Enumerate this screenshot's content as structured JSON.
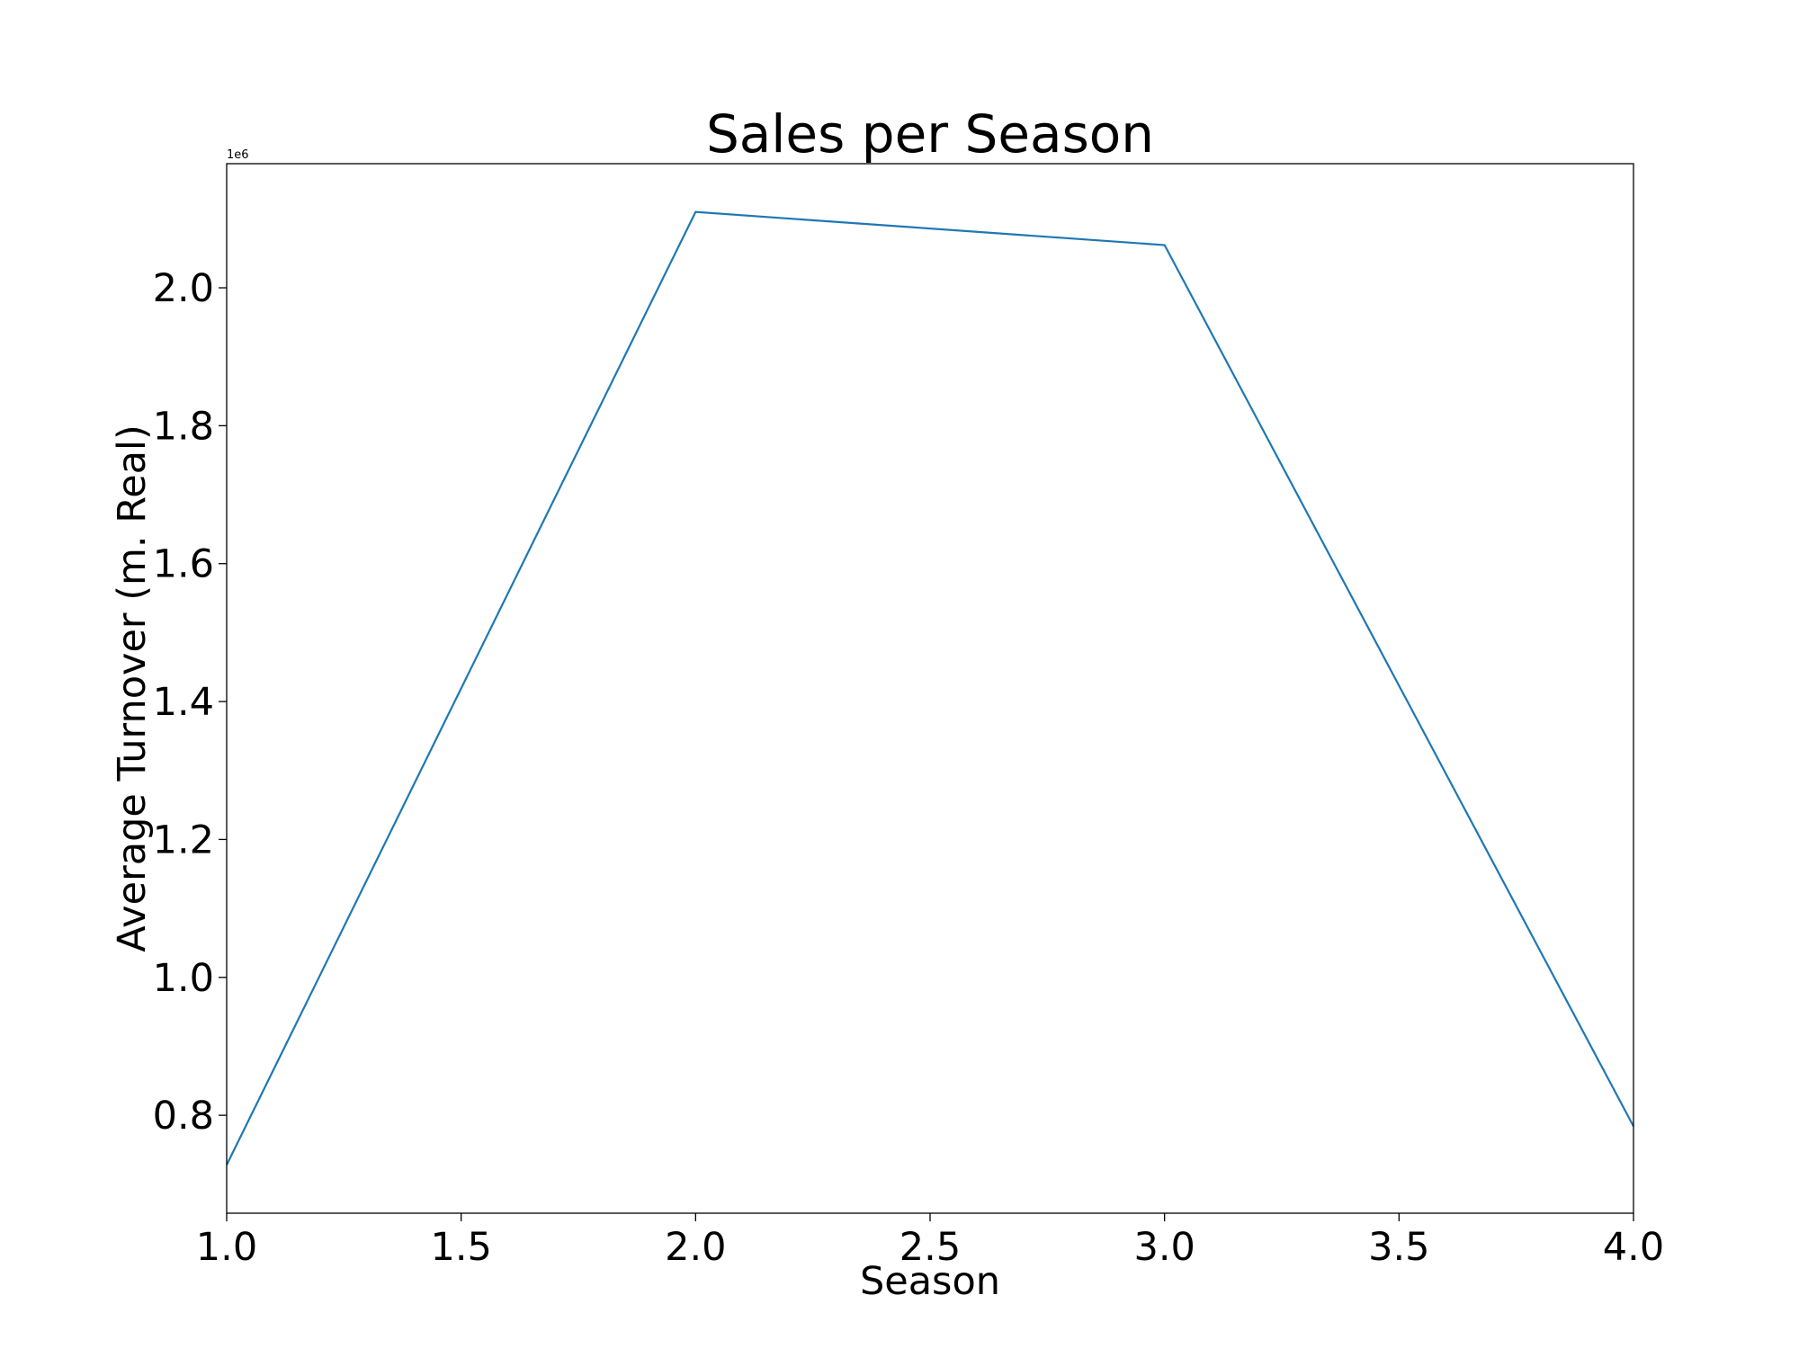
{
  "chart_data": {
    "type": "line",
    "title": "Sales per Season",
    "xlabel": "Season",
    "ylabel": "Average Turnover (m. Real)",
    "y_offset_label": "1e6",
    "xlim": [
      1.0,
      4.0
    ],
    "ylim": [
      658000,
      2180000
    ],
    "x_ticks": [
      1.0,
      1.5,
      2.0,
      2.5,
      3.0,
      3.5,
      4.0
    ],
    "x_tick_labels": [
      "1.0",
      "1.5",
      "2.0",
      "2.5",
      "3.0",
      "3.5",
      "4.0"
    ],
    "y_ticks": [
      800000,
      1000000,
      1200000,
      1400000,
      1600000,
      1800000,
      2000000
    ],
    "y_tick_labels": [
      "0.8",
      "1.0",
      "1.2",
      "1.4",
      "1.6",
      "1.8",
      "2.0"
    ],
    "grid": false,
    "series": [
      {
        "color": "#1f77b4",
        "x": [
          1,
          2,
          3,
          4
        ],
        "y": [
          728000,
          2110000,
          2062000,
          784000
        ]
      }
    ]
  }
}
